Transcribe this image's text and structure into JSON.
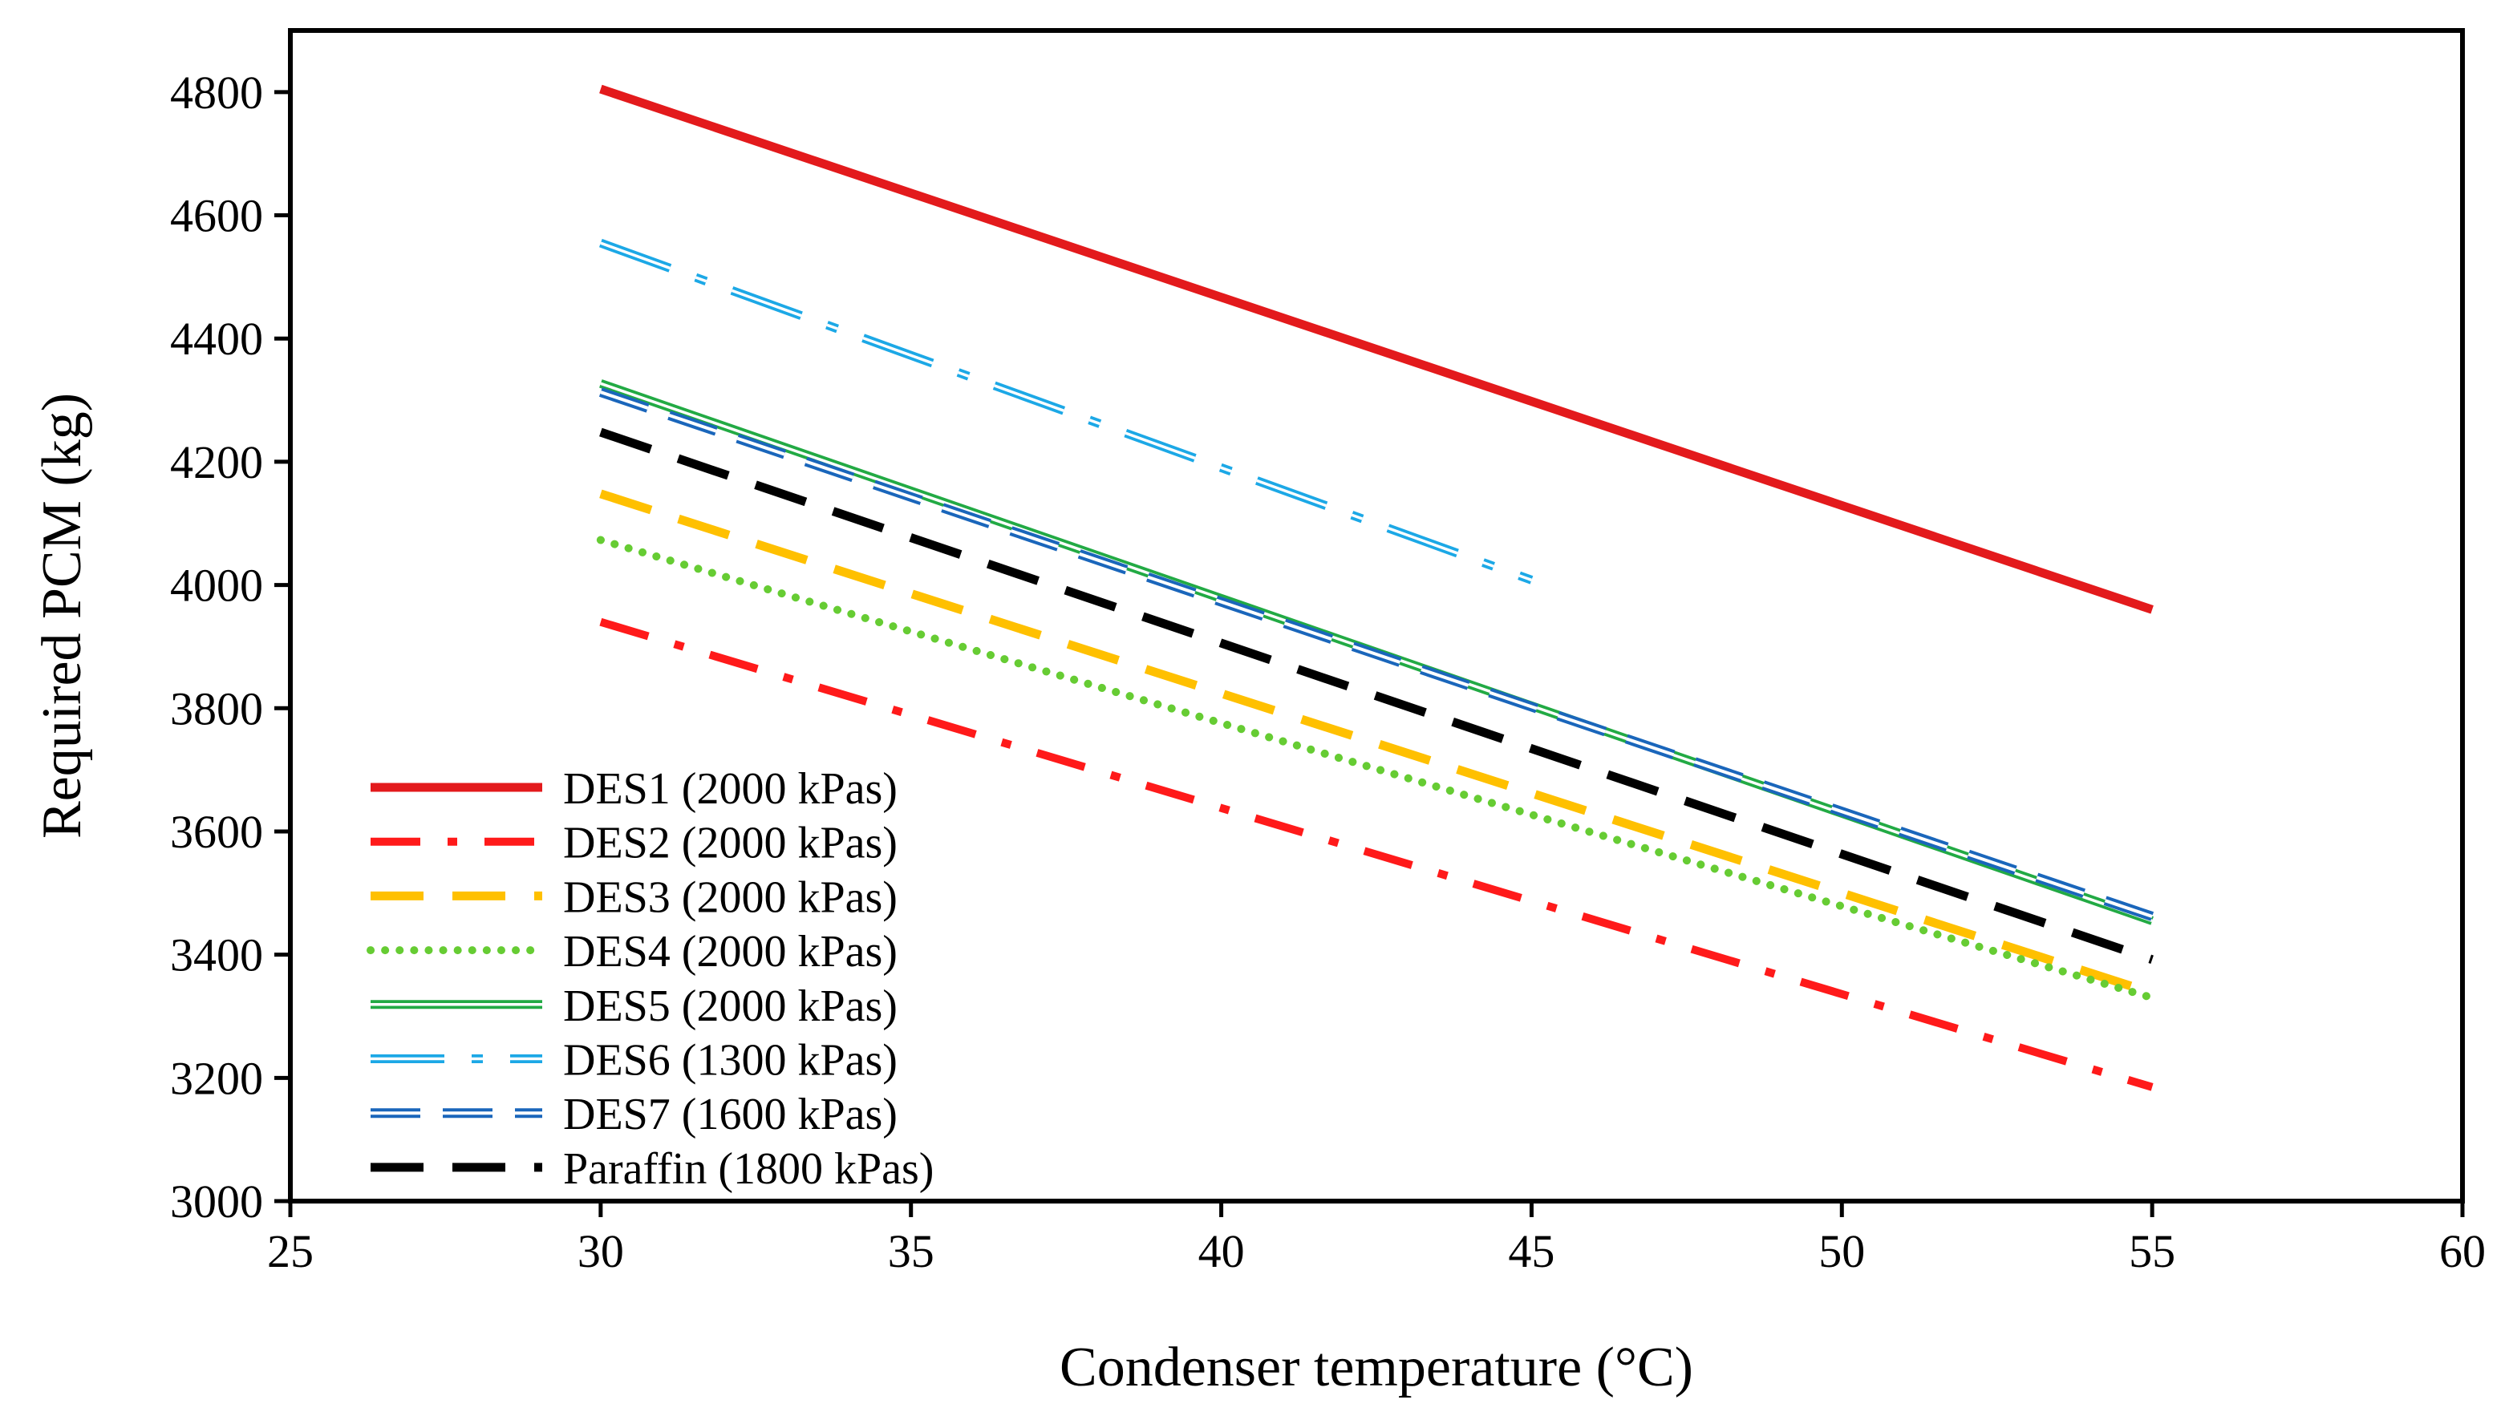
{
  "chart_data": {
    "type": "line",
    "title": "",
    "xlabel": "Condenser temperature  (°C)",
    "ylabel": "Required PCM (kg)",
    "xlim": [
      25,
      60
    ],
    "ylim": [
      3000,
      4900
    ],
    "xticks": [
      25,
      30,
      35,
      40,
      45,
      50,
      55,
      60
    ],
    "yticks": [
      3000,
      3200,
      3400,
      3600,
      3800,
      4000,
      4200,
      4400,
      4600,
      4800
    ],
    "grid": false,
    "legend_position": "bottom-left",
    "series": [
      {
        "name": "DES1 (2000 kPas)",
        "style": "solid",
        "color": "#e31a1c",
        "x": [
          30,
          55
        ],
        "y": [
          4805,
          3960
        ]
      },
      {
        "name": "DES2 (2000 kPas)",
        "style": "dash-dot",
        "color": "#ff1a1a",
        "x": [
          30,
          55
        ],
        "y": [
          3940,
          3185
        ]
      },
      {
        "name": "DES3 (2000 kPas)",
        "style": "dashed",
        "color": "#ffc000",
        "x": [
          30,
          55
        ],
        "y": [
          4148,
          3338
        ]
      },
      {
        "name": "DES4 (2000 kPas)",
        "style": "dotted",
        "color": "#66cc33",
        "x": [
          30,
          55
        ],
        "y": [
          4073,
          3330
        ]
      },
      {
        "name": "DES5 (2000 kPas)",
        "style": "double",
        "color": "#22aa44",
        "x": [
          30,
          55
        ],
        "y": [
          4327,
          3455
        ]
      },
      {
        "name": "DES6 (1300 kPas)",
        "style": "double-dash-dot",
        "color": "#1ca8e6",
        "x": [
          30,
          45
        ],
        "y": [
          4555,
          4008
        ]
      },
      {
        "name": "DES7 (1600 kPas)",
        "style": "double-dashed",
        "color": "#1a66bb",
        "x": [
          30,
          55
        ],
        "y": [
          4313,
          3462
        ]
      },
      {
        "name": "Paraffin (1800 kPas)",
        "style": "dashed",
        "color": "#000000",
        "x": [
          30,
          55
        ],
        "y": [
          4248,
          3392
        ]
      }
    ]
  }
}
